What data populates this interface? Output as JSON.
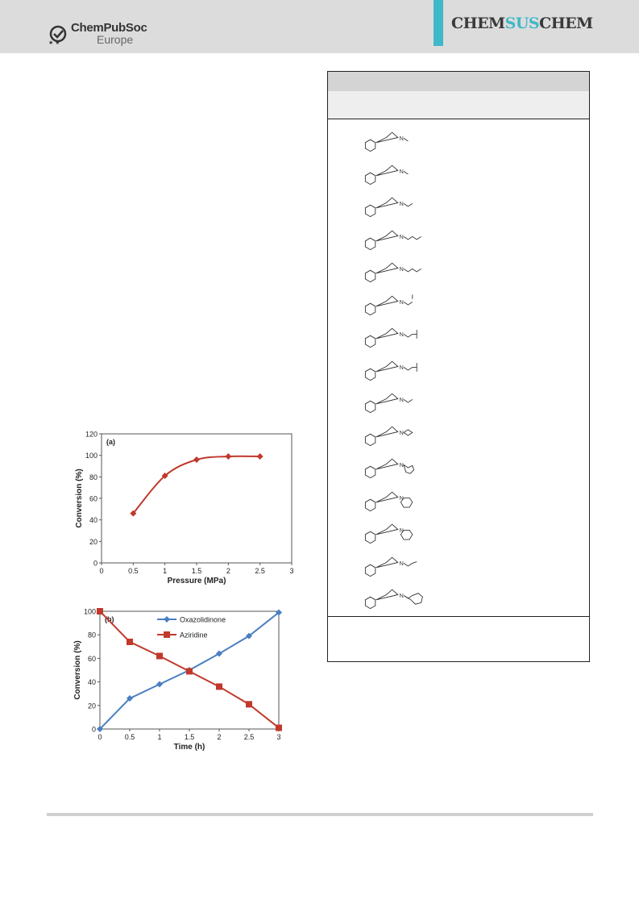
{
  "header": {
    "publisher_line1": "ChemPubSoc",
    "publisher_line2": "Europe",
    "journal_part1": "CHEM",
    "journal_part2": "SUS",
    "journal_part3": "CHEM"
  },
  "colors": {
    "header_bg": "#dcdcdc",
    "accent": "#3fb8c8",
    "series_red": "#c0392b",
    "series_blue": "#4a7fc1"
  },
  "table": {
    "rows": [
      {
        "n_substituent": "methyl"
      },
      {
        "n_substituent": "methyl"
      },
      {
        "n_substituent": "ethyl"
      },
      {
        "n_substituent": "n-butyl"
      },
      {
        "n_substituent": "n-butyl"
      },
      {
        "n_substituent": "methoxyethyl"
      },
      {
        "n_substituent": "neopentyl"
      },
      {
        "n_substituent": "neopentyl"
      },
      {
        "n_substituent": "ethyl"
      },
      {
        "n_substituent": "cyclopropyl"
      },
      {
        "n_substituent": "cyclopentyl"
      },
      {
        "n_substituent": "cyclohexyl"
      },
      {
        "n_substituent": "cyclohexyl"
      },
      {
        "n_substituent": "benzyl"
      },
      {
        "n_substituent": "cyclohexylmethyl"
      }
    ]
  },
  "chart_data": [
    {
      "type": "line",
      "annotation": "(a)",
      "xlabel": "Pressure (MPa)",
      "ylabel": "Conversion (%)",
      "xlim": [
        0,
        3
      ],
      "ylim": [
        0,
        120
      ],
      "xticks": [
        "0",
        "0.5",
        "1",
        "1.5",
        "2",
        "2.5",
        "3"
      ],
      "yticks": [
        "0",
        "20",
        "40",
        "60",
        "80",
        "100",
        "120"
      ],
      "grid": false,
      "series": [
        {
          "x": [
            0.5,
            1,
            1.5,
            2,
            2.5
          ],
          "values": [
            46,
            81,
            96,
            99,
            99
          ],
          "marker": "diamond",
          "color": "#c0392b"
        }
      ]
    },
    {
      "type": "line",
      "annotation": "(b)",
      "xlabel": "Time (h)",
      "ylabel": "Conversion (%)",
      "xlim": [
        0,
        3
      ],
      "ylim": [
        0,
        100
      ],
      "xticks": [
        "0",
        "0.5",
        "1",
        "1.5",
        "2",
        "2.5",
        "3"
      ],
      "yticks": [
        "0",
        "20",
        "40",
        "60",
        "80",
        "100"
      ],
      "grid": false,
      "legend_position": "top-right",
      "series": [
        {
          "name": "Oxazolidinone",
          "x": [
            0,
            0.5,
            1,
            1.5,
            2,
            2.5,
            3
          ],
          "values": [
            0,
            26,
            38,
            50,
            64,
            79,
            99
          ],
          "marker": "diamond",
          "color": "#4a7fc1"
        },
        {
          "name": "Aziridine",
          "x": [
            0,
            0.5,
            1,
            1.5,
            2,
            2.5,
            3
          ],
          "values": [
            100,
            74,
            62,
            49,
            36,
            21,
            1
          ],
          "marker": "square",
          "color": "#c0392b"
        }
      ]
    }
  ]
}
